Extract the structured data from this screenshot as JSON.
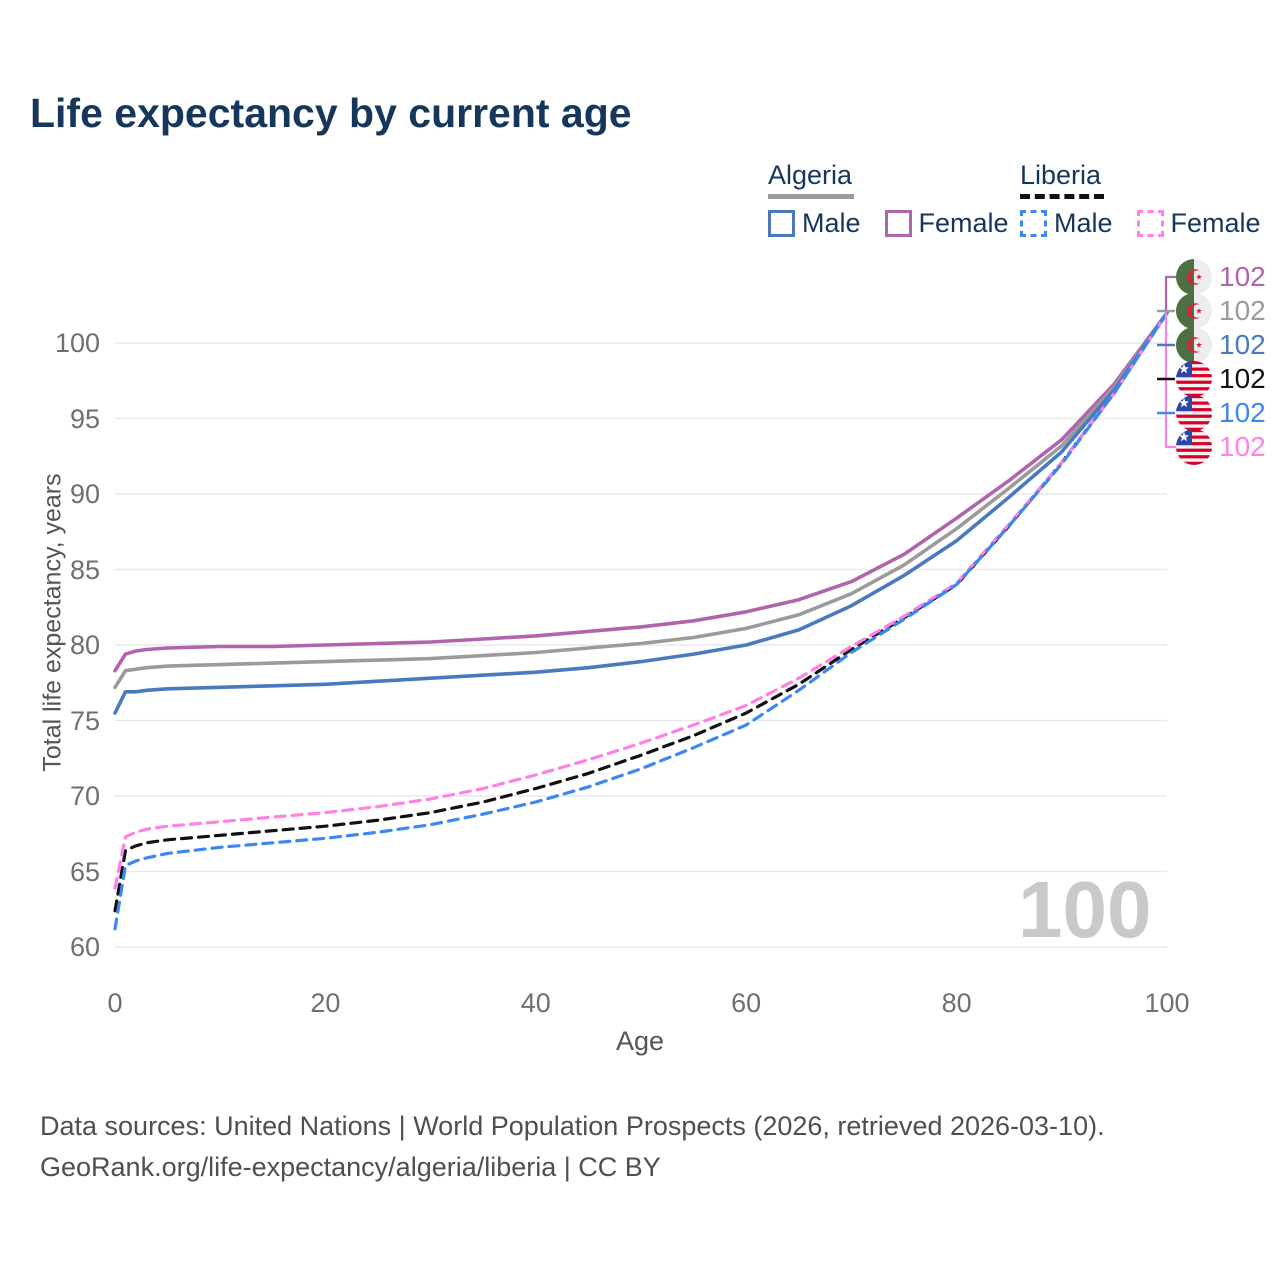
{
  "title": "Life expectancy by current age",
  "watermark_age": "100",
  "legend": {
    "groups": [
      {
        "country": "Algeria",
        "line_style": "solid",
        "underline_color": "#9b9b9b",
        "items": [
          {
            "label": "Male",
            "color": "#4a79c0"
          },
          {
            "label": "Female",
            "color": "#b164ae"
          }
        ]
      },
      {
        "country": "Liberia",
        "line_style": "dashed",
        "underline_color": "#111111",
        "items": [
          {
            "label": "Male",
            "color": "#3e87f3"
          },
          {
            "label": "Female",
            "color": "#ff82e2"
          }
        ]
      }
    ]
  },
  "footer": {
    "line1": "Data sources: United Nations | World Population Prospects (2026, retrieved 2026-03-10).",
    "line2": "GeoRank.org/life-expectancy/algeria/liberia | CC BY"
  },
  "chart_data": {
    "type": "line",
    "title": "Life expectancy by current age",
    "xlabel": "Age",
    "ylabel": "Total life expectancy, years",
    "xlim": [
      0,
      100
    ],
    "ylim": [
      60,
      102
    ],
    "xticks": [
      0,
      20,
      40,
      60,
      80,
      100
    ],
    "yticks": [
      60,
      65,
      70,
      75,
      80,
      85,
      90,
      95,
      100
    ],
    "grid": "horizontal",
    "legend_position": "top-right",
    "ages": [
      0,
      1,
      2,
      3,
      5,
      10,
      15,
      20,
      25,
      30,
      35,
      40,
      45,
      50,
      55,
      60,
      65,
      70,
      75,
      80,
      85,
      90,
      95,
      100
    ],
    "series": [
      {
        "name": "Algeria Female",
        "country": "Algeria",
        "sex": "Female",
        "style": "solid",
        "color": "#b164ae",
        "values": [
          78.3,
          79.4,
          79.6,
          79.7,
          79.8,
          79.9,
          79.9,
          80.0,
          80.1,
          80.2,
          80.4,
          80.6,
          80.9,
          81.2,
          81.6,
          82.2,
          83.0,
          84.2,
          86.0,
          88.4,
          90.9,
          93.6,
          97.3,
          102
        ]
      },
      {
        "name": "Algeria Both sexes",
        "country": "Algeria",
        "sex": "Both",
        "style": "solid",
        "color": "#9b9b9b",
        "values": [
          77.2,
          78.3,
          78.4,
          78.5,
          78.6,
          78.7,
          78.8,
          78.9,
          79.0,
          79.1,
          79.3,
          79.5,
          79.8,
          80.1,
          80.5,
          81.1,
          82.0,
          83.4,
          85.3,
          87.7,
          90.4,
          93.2,
          97.1,
          102
        ]
      },
      {
        "name": "Algeria Male",
        "country": "Algeria",
        "sex": "Male",
        "style": "solid",
        "color": "#4a79c0",
        "values": [
          75.5,
          76.9,
          76.9,
          77.0,
          77.1,
          77.2,
          77.3,
          77.4,
          77.6,
          77.8,
          78.0,
          78.2,
          78.5,
          78.9,
          79.4,
          80.0,
          81.0,
          82.6,
          84.6,
          86.9,
          89.8,
          92.8,
          96.9,
          102
        ]
      },
      {
        "name": "Liberia Both sexes",
        "country": "Liberia",
        "sex": "Both",
        "style": "dashed",
        "color": "#111111",
        "values": [
          62.4,
          66.4,
          66.7,
          66.9,
          67.1,
          67.4,
          67.7,
          68.0,
          68.4,
          68.9,
          69.6,
          70.5,
          71.5,
          72.7,
          74.0,
          75.5,
          77.4,
          79.7,
          81.8,
          84.0,
          87.9,
          92.1,
          96.7,
          102
        ]
      },
      {
        "name": "Liberia Female",
        "country": "Liberia",
        "sex": "Female",
        "style": "dashed",
        "color": "#ff82e2",
        "values": [
          63.9,
          67.3,
          67.6,
          67.8,
          68.0,
          68.3,
          68.6,
          68.9,
          69.3,
          69.8,
          70.5,
          71.4,
          72.4,
          73.5,
          74.7,
          76.0,
          77.8,
          79.9,
          81.9,
          84.1,
          88.0,
          92.1,
          96.7,
          102
        ]
      },
      {
        "name": "Liberia Male",
        "country": "Liberia",
        "sex": "Male",
        "style": "dashed",
        "color": "#3e87f3",
        "values": [
          61.2,
          65.4,
          65.7,
          65.9,
          66.2,
          66.6,
          66.9,
          67.2,
          67.6,
          68.1,
          68.8,
          69.6,
          70.6,
          71.8,
          73.2,
          74.7,
          77.0,
          79.5,
          81.7,
          84.0,
          87.9,
          92.0,
          96.7,
          102
        ]
      }
    ],
    "end_labels": [
      {
        "flag": "algeria-flag-icon",
        "country": "Algeria",
        "series": "Algeria Female",
        "value": "102",
        "color": "#b164ae"
      },
      {
        "flag": "algeria-flag-icon",
        "country": "Algeria",
        "series": "Algeria Both sexes",
        "value": "102",
        "color": "#9b9b9b"
      },
      {
        "flag": "algeria-flag-icon",
        "country": "Algeria",
        "series": "Algeria Male",
        "value": "102",
        "color": "#4a79c0"
      },
      {
        "flag": "liberia-flag-icon",
        "country": "Liberia",
        "series": "Liberia Both sexes",
        "value": "102",
        "color": "#111111"
      },
      {
        "flag": "liberia-flag-icon",
        "country": "Liberia",
        "series": "Liberia Male",
        "value": "102",
        "color": "#3e87f3"
      },
      {
        "flag": "liberia-flag-icon",
        "country": "Liberia",
        "series": "Liberia Female",
        "value": "102",
        "color": "#ff82e2"
      }
    ],
    "flag_colors": {
      "algeria_green": "#4d7042",
      "algeria_white": "#ededed",
      "algeria_red": "#d5233c",
      "liberia_red": "#d80027",
      "liberia_white": "#f2f2f2",
      "liberia_blue": "#2b47a8"
    }
  }
}
